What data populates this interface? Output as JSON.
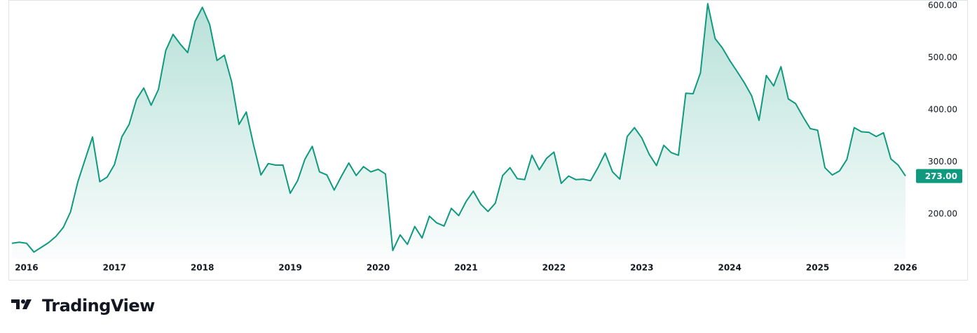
{
  "chart_data": {
    "type": "area",
    "brand": "TradingView",
    "color": "#0f9a7f",
    "grid": false,
    "price_label": "273.00",
    "categories": [
      null,
      null,
      "2016",
      null,
      null,
      null,
      null,
      null,
      null,
      null,
      null,
      null,
      null,
      null,
      "2017",
      null,
      null,
      null,
      null,
      null,
      null,
      null,
      null,
      null,
      null,
      null,
      "2018",
      null,
      null,
      null,
      null,
      null,
      null,
      null,
      null,
      null,
      null,
      null,
      "2019",
      null,
      null,
      null,
      null,
      null,
      null,
      null,
      null,
      null,
      null,
      null,
      "2020",
      null,
      null,
      null,
      null,
      null,
      null,
      null,
      null,
      null,
      null,
      null,
      "2021",
      null,
      null,
      null,
      null,
      null,
      null,
      null,
      null,
      null,
      null,
      null,
      "2022",
      null,
      null,
      null,
      null,
      null,
      null,
      null,
      null,
      null,
      null,
      null,
      "2023",
      null,
      null,
      null,
      null,
      null,
      null,
      null,
      null,
      null,
      null,
      null,
      "2024",
      null,
      null,
      null,
      null,
      null,
      null,
      null,
      null,
      null,
      null,
      null,
      "2025",
      null,
      null,
      null,
      null,
      null,
      null,
      null,
      null,
      null,
      null,
      null,
      "2026"
    ],
    "values": [
      144,
      146,
      144,
      127,
      136,
      145,
      157,
      174,
      204,
      262,
      305,
      348,
      262,
      271,
      295,
      348,
      372,
      420,
      442,
      409,
      439,
      514,
      545,
      526,
      510,
      570,
      597,
      564,
      495,
      505,
      454,
      372,
      396,
      332,
      275,
      297,
      294,
      294,
      240,
      264,
      305,
      330,
      281,
      275,
      246,
      273,
      298,
      274,
      291,
      281,
      286,
      277,
      130,
      160,
      142,
      176,
      154,
      196,
      183,
      177,
      211,
      197,
      224,
      244,
      219,
      205,
      221,
      274,
      289,
      268,
      266,
      313,
      285,
      307,
      319,
      259,
      273,
      266,
      267,
      264,
      289,
      317,
      281,
      267,
      349,
      366,
      346,
      315,
      293,
      332,
      318,
      313,
      432,
      431,
      471,
      604,
      537,
      519,
      495,
      474,
      452,
      427,
      380,
      466,
      446,
      483,
      421,
      412,
      387,
      364,
      361,
      289,
      275,
      283,
      305,
      366,
      358,
      357,
      349,
      356,
      306,
      294,
      273
    ],
    "ylim": [
      114,
      611
    ],
    "yticks": [
      {
        "value": 200,
        "label": "200.00"
      },
      {
        "value": 300,
        "label": "300.00"
      },
      {
        "value": 400,
        "label": "400.00"
      },
      {
        "value": 500,
        "label": "500.00"
      },
      {
        "value": 600,
        "label": "600.00"
      }
    ]
  }
}
